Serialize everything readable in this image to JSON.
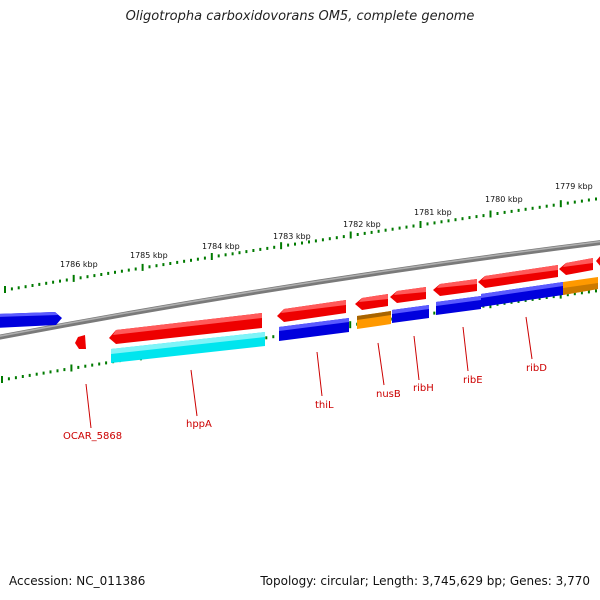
{
  "title": "Oligotropha carboxidovorans OM5, complete genome",
  "footer": {
    "accession": "Accession: NC_011386",
    "topology": "Topology: circular; Length: 3,745,629 bp; Genes: 3,770"
  },
  "ruler": {
    "unit": "kbp",
    "labels": [
      "1786 kbp",
      "1785 kbp",
      "1784 kbp",
      "1783 kbp",
      "1782 kbp",
      "1781 kbp",
      "1780 kbp",
      "1779 kbp"
    ]
  },
  "genes": [
    {
      "label": "OCAR_5868",
      "color": "#ee0000"
    },
    {
      "label": "hppA",
      "color": "#ee0000"
    },
    {
      "label": "thiL",
      "color": "#ee0000"
    },
    {
      "label": "nusB",
      "color": "#ee0000"
    },
    {
      "label": "ribH",
      "color": "#ee0000"
    },
    {
      "label": "ribE",
      "color": "#ee0000"
    },
    {
      "label": "ribD",
      "color": "#ee0000"
    }
  ],
  "colors": {
    "gene": "#ee0000",
    "cds_cyan": "#00e5ee",
    "cds_blue": "#0000dd",
    "cds_orange": "#ff9900",
    "backbone": "#808080",
    "tick": "#007a00",
    "label": "#cc0000"
  }
}
